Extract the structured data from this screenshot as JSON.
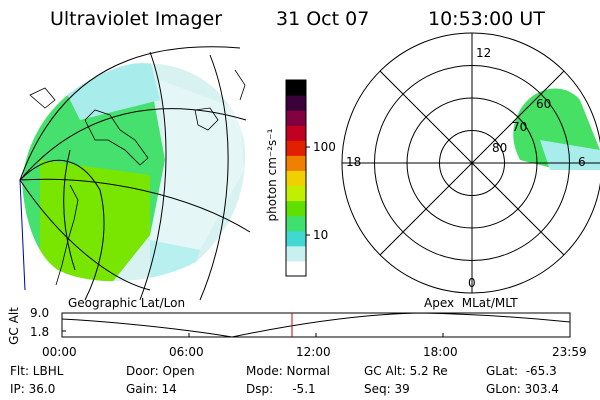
{
  "header": {
    "title": "Ultraviolet Imager",
    "date": "31 Oct 07",
    "time": "10:53:00 UT"
  },
  "colorbar": {
    "unit_label": "photon cm⁻²s⁻¹",
    "tick_100": "100",
    "tick_10": "10",
    "colors": [
      "#ffffff",
      "#c8f0f0",
      "#40d8d0",
      "#40e070",
      "#60e000",
      "#c0f000",
      "#f0d000",
      "#f08000",
      "#e02000",
      "#c00020",
      "#800040",
      "#3a003a",
      "#000000"
    ]
  },
  "geo_panel": {
    "label": "Geographic Lat/Lon"
  },
  "polar_panel": {
    "label": "Apex  MLat/MLT",
    "mlt_labels": {
      "top": "12",
      "left": "18",
      "bottom": "0",
      "right": "6"
    },
    "lat_labels": [
      "80",
      "70",
      "60"
    ]
  },
  "altitude_plot": {
    "y_title": "GC Alt",
    "y_ticks": [
      "9.0",
      "1.8"
    ],
    "x_ticks": [
      "00:00",
      "06:00",
      "12:00",
      "18:00",
      "23:59"
    ],
    "marker_color": "#cc0000"
  },
  "footer": {
    "flt": "Flt: LBHL",
    "ip": "IP: 36.0",
    "door": "Door: Open",
    "gain": "Gain: 14",
    "mode": "Mode: Normal",
    "dsp": "Dsp:     -5.1",
    "gcalt": "GC Alt: 5.2 Re",
    "seq": "Seq: 39",
    "glat": "GLat:  -65.3",
    "glon": "GLon: 303.4"
  }
}
